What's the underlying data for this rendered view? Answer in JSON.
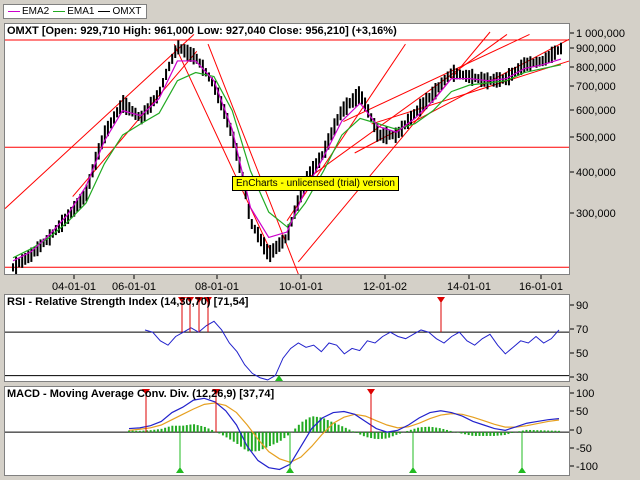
{
  "legend": [
    {
      "name": "EMA2",
      "color": "#cc00cc"
    },
    {
      "name": "EMA1",
      "color": "#22aa22"
    },
    {
      "name": "OMXT",
      "color": "#000000"
    }
  ],
  "watermark": "EnCharts - unlicensed (trial) version",
  "main": {
    "title": "OMXT [Open: 929,710  High: 961,000  Low: 927,040  Close: 956,210] (+3,16%)",
    "y_ticks": [
      "1 000,000",
      "900,000",
      "800,000",
      "700,000",
      "600,000",
      "500,000",
      "400,000",
      "300,000"
    ],
    "x_ticks": [
      "04-01-01",
      "06-01-01",
      "08-01-01",
      "10-01-01",
      "12-01-02",
      "14-01-01",
      "16-01-01"
    ]
  },
  "rsi": {
    "title": "RSI - Relative Strength Index (14,30,70) [71,54]",
    "y_ticks": [
      "90",
      "70",
      "50",
      "30"
    ]
  },
  "macd": {
    "title": "MACD - Moving Average Conv. Div. (12,26,9) [37,74]",
    "y_ticks": [
      "100",
      "50",
      "0",
      "-50",
      "-100"
    ]
  },
  "colors": {
    "ema2": "#cc00cc",
    "ema1": "#22aa22",
    "price": "#000000",
    "trend": "#ff0000",
    "rsi": "#2222cc",
    "macd": "#2222cc",
    "signal": "#e6a020",
    "hist": "#22aa22",
    "sell": "#dd0000",
    "buy": "#22bb22"
  },
  "chart_data": [
    {
      "type": "line",
      "title": "OMXT [Open: 929,710  High: 961,000  Low: 927,040  Close: 956,210] (+3,16%)",
      "y_scale": "log",
      "ylim": [
        240000,
        1050000
      ],
      "x": [
        "2003-01",
        "2003-07",
        "2004-01",
        "2004-07",
        "2005-01",
        "2005-07",
        "2006-01",
        "2006-07",
        "2007-01",
        "2007-04",
        "2007-07",
        "2008-01",
        "2008-07",
        "2009-01",
        "2009-03",
        "2009-07",
        "2010-01",
        "2010-07",
        "2011-01",
        "2011-04",
        "2011-07",
        "2012-01",
        "2012-07",
        "2013-01",
        "2013-07",
        "2014-01",
        "2014-07",
        "2015-01",
        "2015-07",
        "2016-01",
        "2016-04"
      ],
      "series": [
        {
          "name": "OMXT",
          "values": [
            250000,
            270000,
            300000,
            340000,
            390000,
            560000,
            680000,
            620000,
            720000,
            960000,
            900000,
            760000,
            560000,
            330000,
            270000,
            300000,
            420000,
            500000,
            650000,
            720000,
            560000,
            560000,
            640000,
            720000,
            820000,
            800000,
            780000,
            790000,
            860000,
            880000,
            950000
          ]
        },
        {
          "name": "EMA1",
          "values": [
            265000,
            280000,
            300000,
            330000,
            370000,
            470000,
            560000,
            600000,
            640000,
            780000,
            820000,
            800000,
            650000,
            450000,
            350000,
            320000,
            370000,
            450000,
            560000,
            620000,
            600000,
            580000,
            600000,
            650000,
            730000,
            760000,
            770000,
            780000,
            820000,
            840000,
            860000
          ]
        },
        {
          "name": "EMA2",
          "values": [
            260000,
            275000,
            305000,
            345000,
            410000,
            540000,
            650000,
            630000,
            700000,
            880000,
            880000,
            780000,
            580000,
            360000,
            300000,
            310000,
            400000,
            490000,
            610000,
            680000,
            590000,
            570000,
            620000,
            690000,
            790000,
            790000,
            780000,
            790000,
            840000,
            860000,
            890000
          ]
        }
      ],
      "trendlines": [
        {
          "from": [
            0,
            0.27
          ],
          "to": [
            0.335,
            0.99
          ]
        },
        {
          "from": [
            0.12,
            0.32
          ],
          "to": [
            0.34,
            0.92
          ]
        },
        {
          "from": [
            0.36,
            0.95
          ],
          "to": [
            0.52,
            0.0
          ]
        },
        {
          "from": [
            0.3,
            0.95
          ],
          "to": [
            0.47,
            0.1
          ]
        },
        {
          "from": [
            0.52,
            0.05
          ],
          "to": [
            0.86,
            1.0
          ]
        },
        {
          "from": [
            0.5,
            0.22
          ],
          "to": [
            0.71,
            0.95
          ]
        },
        {
          "from": [
            0.54,
            0.4
          ],
          "to": [
            0.89,
            0.99
          ]
        },
        {
          "from": [
            0.62,
            0.5
          ],
          "to": [
            1.0,
            0.97
          ]
        },
        {
          "from": [
            0.65,
            0.62
          ],
          "to": [
            1.0,
            0.88
          ]
        },
        {
          "from": [
            0.6,
            0.63
          ],
          "to": [
            0.93,
            0.99
          ]
        }
      ],
      "hlines": [
        1000000,
        520000,
        250000
      ]
    },
    {
      "type": "line",
      "title": "RSI - Relative Strength Index (14,30,70) [71,54]",
      "ylim": [
        25,
        95
      ],
      "levels": [
        30,
        70
      ],
      "values": [
        72,
        70,
        62,
        58,
        66,
        70,
        74,
        70,
        76,
        80,
        72,
        60,
        52,
        40,
        32,
        28,
        26,
        30,
        46,
        55,
        60,
        56,
        58,
        52,
        60,
        58,
        50,
        55,
        53,
        62,
        60,
        66,
        70,
        66,
        64,
        68,
        72,
        70,
        64,
        60,
        66,
        70,
        62,
        58,
        64,
        68,
        58,
        50,
        56,
        62,
        60,
        66,
        60,
        64,
        72
      ]
    },
    {
      "type": "line",
      "title": "MACD - Moving Average Conv. Div. (12,26,9) [37,74]",
      "ylim": [
        -115,
        110
      ],
      "series": [
        {
          "name": "MACD",
          "values": [
            10,
            12,
            18,
            30,
            55,
            70,
            90,
            95,
            85,
            60,
            20,
            -40,
            -80,
            -100,
            -105,
            -90,
            -40,
            10,
            40,
            55,
            58,
            50,
            30,
            10,
            0,
            5,
            20,
            40,
            55,
            60,
            55,
            45,
            30,
            20,
            10,
            5,
            15,
            25,
            30,
            35,
            38
          ]
        },
        {
          "name": "Signal",
          "values": [
            5,
            8,
            12,
            20,
            35,
            50,
            65,
            78,
            82,
            75,
            55,
            20,
            -20,
            -55,
            -75,
            -85,
            -70,
            -40,
            -5,
            25,
            42,
            50,
            45,
            32,
            20,
            12,
            15,
            25,
            38,
            48,
            52,
            50,
            42,
            32,
            22,
            14,
            14,
            18,
            24,
            30,
            34
          ]
        }
      ]
    }
  ]
}
